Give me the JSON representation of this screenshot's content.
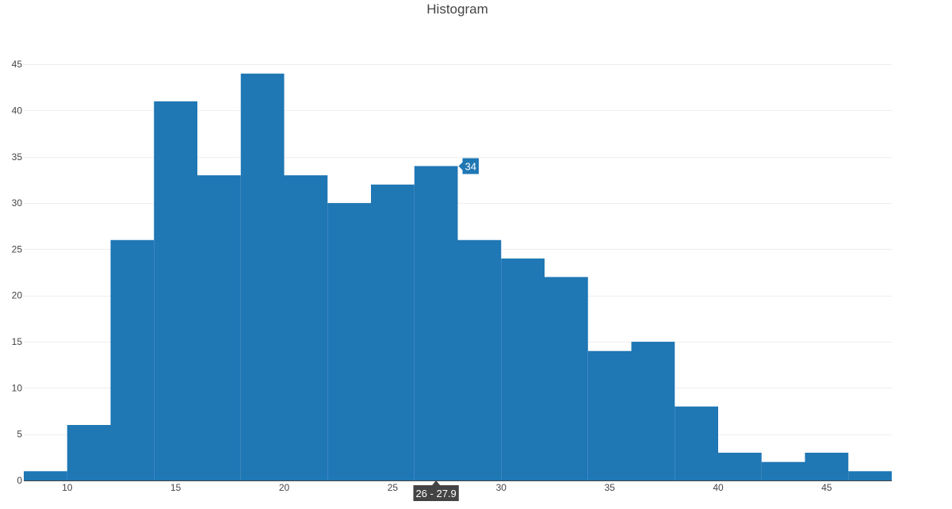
{
  "chart_data": {
    "type": "bar",
    "title": "Histogram",
    "xlabel": "",
    "ylabel": "",
    "xlim": [
      8,
      48
    ],
    "ylim": [
      0,
      47.5
    ],
    "bin_start": 8,
    "bin_width": 2,
    "values": [
      1,
      6,
      26,
      41,
      33,
      44,
      33,
      30,
      32,
      34,
      26,
      24,
      22,
      14,
      15,
      8,
      3,
      2,
      3,
      1
    ],
    "x_ticks": [
      10,
      15,
      20,
      25,
      30,
      35,
      40,
      45
    ],
    "y_ticks": [
      0,
      5,
      10,
      15,
      20,
      25,
      30,
      35,
      40,
      45
    ],
    "grid": true,
    "bar_color": "#1f77b4",
    "hover": {
      "bin_index": 9,
      "value_label": "34",
      "range_label": "26 - 27.9"
    }
  }
}
